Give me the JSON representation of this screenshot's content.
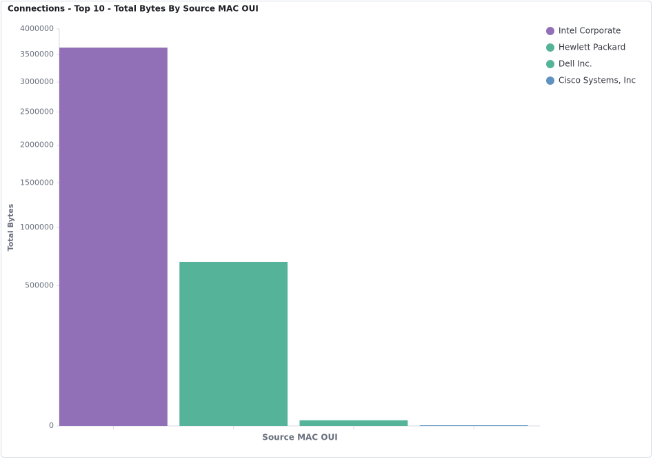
{
  "chart_data": {
    "type": "bar",
    "title": "Connections - Top 10 - Total Bytes By Source MAC OUI",
    "x_label": "Source MAC OUI",
    "y_label": "Total Bytes",
    "categories": [
      "Intel Corporate",
      "Hewlett Packard",
      "Dell Inc.",
      "Cisco Systems, Inc"
    ],
    "values": [
      3633000,
      683000,
      800,
      10
    ],
    "colors": [
      "#9170b8",
      "#54b399",
      "#54b399",
      "#6092c0"
    ],
    "scale": "sqrt",
    "ylim": [
      0,
      4000000
    ],
    "yticks": [
      0,
      500000,
      1000000,
      1500000,
      2000000,
      2500000,
      3000000,
      3500000,
      4000000
    ],
    "legend": "top-right"
  }
}
